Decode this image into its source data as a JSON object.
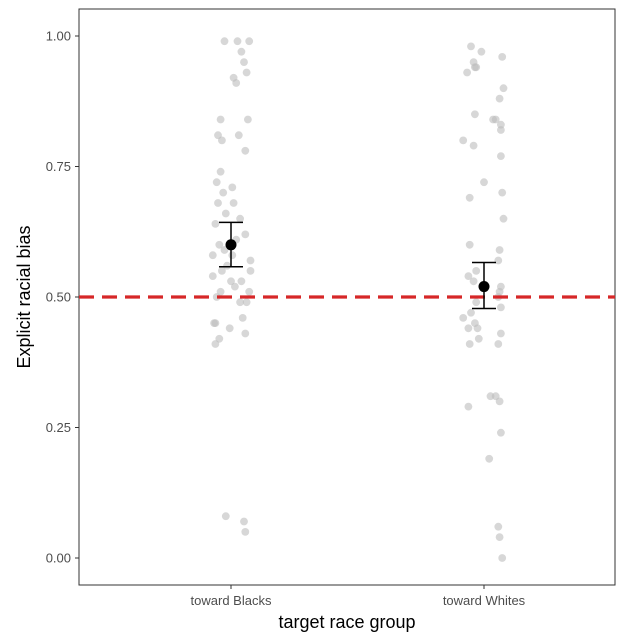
{
  "chart_data": {
    "type": "scatter",
    "title": "",
    "xlabel": "target race group",
    "ylabel": "Explicit racial bias",
    "categories": [
      "toward Blacks",
      "toward Whites"
    ],
    "ylim": [
      -0.04,
      1.05
    ],
    "yticks": [
      0.0,
      0.25,
      0.5,
      0.75,
      1.0
    ],
    "ytick_labels": [
      "0.00",
      "0.25",
      "0.50",
      "0.75",
      "1.00"
    ],
    "reference_line": {
      "y": 0.5,
      "style": "dashed",
      "color": "#d62728"
    },
    "point_color": "#bdbdbd",
    "summary_color": "#000000",
    "grid": false,
    "legend": "none",
    "summary": [
      {
        "category": "toward Blacks",
        "mean": 0.6,
        "lower": 0.558,
        "upper": 0.643
      },
      {
        "category": "toward Whites",
        "mean": 0.52,
        "lower": 0.478,
        "upper": 0.566
      }
    ],
    "points": [
      {
        "category": "toward Blacks",
        "values": [
          0.99,
          0.99,
          0.99,
          0.97,
          0.95,
          0.93,
          0.92,
          0.91,
          0.84,
          0.84,
          0.81,
          0.81,
          0.8,
          0.78,
          0.74,
          0.72,
          0.71,
          0.7,
          0.68,
          0.68,
          0.66,
          0.65,
          0.64,
          0.62,
          0.61,
          0.6,
          0.59,
          0.58,
          0.58,
          0.57,
          0.56,
          0.55,
          0.55,
          0.54,
          0.53,
          0.53,
          0.52,
          0.51,
          0.51,
          0.5,
          0.49,
          0.49,
          0.46,
          0.45,
          0.45,
          0.44,
          0.43,
          0.42,
          0.41,
          0.08,
          0.07,
          0.05
        ],
        "jitter": [
          -0.05,
          0.05,
          0.14,
          0.08,
          0.1,
          0.12,
          0.02,
          0.04,
          -0.08,
          0.13,
          -0.1,
          0.06,
          -0.07,
          0.11,
          -0.08,
          -0.11,
          0.01,
          -0.06,
          -0.1,
          0.02,
          -0.04,
          0.07,
          -0.12,
          0.11,
          0.04,
          -0.09,
          -0.05,
          -0.14,
          0.01,
          0.15,
          -0.03,
          0.15,
          -0.07,
          -0.14,
          0.08,
          0.0,
          0.03,
          0.14,
          -0.08,
          -0.11,
          0.12,
          0.07,
          0.09,
          -0.12,
          -0.13,
          -0.01,
          0.11,
          -0.09,
          -0.12,
          -0.04,
          0.1,
          0.11
        ]
      },
      {
        "category": "toward Whites",
        "values": [
          0.98,
          0.97,
          0.96,
          0.95,
          0.94,
          0.94,
          0.93,
          0.9,
          0.88,
          0.85,
          0.84,
          0.84,
          0.83,
          0.82,
          0.8,
          0.79,
          0.77,
          0.72,
          0.7,
          0.69,
          0.65,
          0.6,
          0.59,
          0.57,
          0.55,
          0.54,
          0.53,
          0.52,
          0.51,
          0.5,
          0.49,
          0.48,
          0.47,
          0.46,
          0.45,
          0.44,
          0.44,
          0.43,
          0.42,
          0.41,
          0.41,
          0.31,
          0.31,
          0.3,
          0.29,
          0.24,
          0.19,
          0.06,
          0.04,
          0.0
        ],
        "jitter": [
          -0.1,
          -0.02,
          0.14,
          -0.08,
          -0.07,
          -0.06,
          -0.13,
          0.15,
          0.12,
          -0.07,
          0.07,
          0.09,
          0.13,
          0.13,
          -0.16,
          -0.08,
          0.13,
          0.0,
          0.14,
          -0.11,
          0.15,
          -0.11,
          0.12,
          0.11,
          -0.06,
          -0.12,
          -0.08,
          0.13,
          0.12,
          0.11,
          -0.06,
          0.13,
          -0.1,
          -0.16,
          -0.07,
          -0.12,
          -0.05,
          0.13,
          -0.04,
          0.11,
          -0.11,
          0.05,
          0.09,
          0.12,
          -0.12,
          0.13,
          0.04,
          0.11,
          0.12,
          0.14
        ]
      }
    ]
  }
}
